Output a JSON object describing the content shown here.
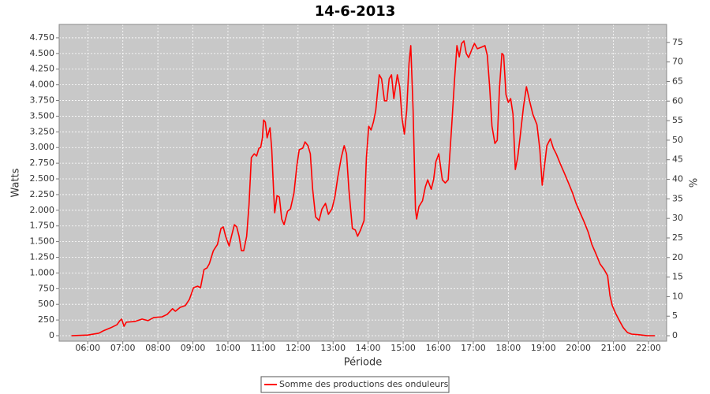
{
  "chart_data": {
    "type": "line",
    "title": "14-6-2013",
    "x_label": "Période",
    "y_label": "Watts",
    "y2_label": "%",
    "x": [
      "05:32",
      "06:00",
      "06:19",
      "06:26",
      "06:39",
      "06:50",
      "06:55",
      "06:58",
      "07:02",
      "07:06",
      "07:20",
      "07:33",
      "07:43",
      "07:53",
      "08:07",
      "08:16",
      "08:25",
      "08:30",
      "08:38",
      "08:47",
      "08:54",
      "09:01",
      "09:08",
      "09:13",
      "09:19",
      "09:24",
      "09:28",
      "09:35",
      "09:42",
      "09:48",
      "09:52",
      "09:56",
      "10:02",
      "10:06",
      "10:11",
      "10:15",
      "10:19",
      "10:23",
      "10:27",
      "10:32",
      "10:36",
      "10:40",
      "10:45",
      "10:49",
      "10:53",
      "10:56",
      "10:59",
      "11:01",
      "11:04",
      "11:07",
      "11:12",
      "11:15",
      "11:18",
      "11:20",
      "11:24",
      "11:28",
      "11:32",
      "11:36",
      "11:42",
      "11:47",
      "11:53",
      "11:58",
      "12:02",
      "12:08",
      "12:12",
      "12:17",
      "12:21",
      "12:25",
      "12:30",
      "12:36",
      "12:41",
      "12:47",
      "12:52",
      "12:58",
      "13:03",
      "13:08",
      "13:14",
      "13:19",
      "13:23",
      "13:27",
      "13:33",
      "13:38",
      "13:42",
      "13:47",
      "13:53",
      "13:57",
      "14:01",
      "14:05",
      "14:09",
      "14:13",
      "14:19",
      "14:23",
      "14:28",
      "14:32",
      "14:36",
      "14:40",
      "14:44",
      "14:50",
      "14:54",
      "14:58",
      "15:02",
      "15:06",
      "15:10",
      "15:13",
      "15:17",
      "15:21",
      "15:23",
      "15:27",
      "15:33",
      "15:38",
      "15:42",
      "15:48",
      "15:52",
      "15:56",
      "16:01",
      "16:07",
      "16:12",
      "16:17",
      "16:23",
      "16:28",
      "16:32",
      "16:36",
      "16:40",
      "16:44",
      "16:48",
      "16:52",
      "16:58",
      "17:02",
      "17:07",
      "17:14",
      "17:20",
      "17:24",
      "17:28",
      "17:32",
      "17:37",
      "17:41",
      "17:45",
      "17:49",
      "17:52",
      "17:56",
      "18:00",
      "18:04",
      "18:08",
      "18:12",
      "18:16",
      "18:20",
      "18:26",
      "18:31",
      "18:37",
      "18:42",
      "18:49",
      "18:54",
      "18:58",
      "19:02",
      "19:06",
      "19:12",
      "19:17",
      "19:22",
      "19:29",
      "19:36",
      "19:43",
      "19:50",
      "19:56",
      "20:03",
      "20:10",
      "20:17",
      "20:23",
      "20:30",
      "20:37",
      "20:44",
      "20:50",
      "20:54",
      "20:58",
      "21:04",
      "21:11",
      "21:17",
      "21:24",
      "21:31",
      "21:44",
      "21:58",
      "22:11"
    ],
    "series": [
      {
        "name": "Somme des productions des onduleurs",
        "color": "#ff0000",
        "values": [
          0,
          10,
          40,
          75,
          125,
          175,
          240,
          265,
          150,
          215,
          225,
          265,
          240,
          290,
          300,
          340,
          430,
          390,
          450,
          480,
          580,
          765,
          790,
          765,
          1055,
          1080,
          1145,
          1355,
          1455,
          1710,
          1735,
          1585,
          1430,
          1585,
          1770,
          1735,
          1585,
          1355,
          1355,
          1585,
          2085,
          2840,
          2900,
          2865,
          2990,
          3000,
          3155,
          3440,
          3405,
          3155,
          3315,
          2965,
          2335,
          1960,
          2235,
          2210,
          1860,
          1770,
          1985,
          2020,
          2275,
          2715,
          2965,
          2990,
          3090,
          3030,
          2900,
          2335,
          1895,
          1835,
          2020,
          2110,
          1935,
          2020,
          2210,
          2525,
          2840,
          3030,
          2900,
          2335,
          1710,
          1685,
          1585,
          1685,
          1835,
          2840,
          3340,
          3280,
          3405,
          3590,
          4160,
          4095,
          3745,
          3745,
          4095,
          4160,
          3780,
          4160,
          3970,
          3470,
          3215,
          3590,
          4345,
          4625,
          3590,
          2020,
          1860,
          2060,
          2150,
          2375,
          2485,
          2335,
          2485,
          2775,
          2900,
          2485,
          2435,
          2485,
          3340,
          4095,
          4625,
          4445,
          4660,
          4700,
          4500,
          4435,
          4575,
          4660,
          4575,
          4600,
          4625,
          4470,
          3970,
          3340,
          3065,
          3115,
          3970,
          4500,
          4470,
          3845,
          3720,
          3780,
          3530,
          2650,
          2840,
          3155,
          3655,
          3970,
          3720,
          3530,
          3365,
          2965,
          2400,
          2715,
          3030,
          3140,
          2990,
          2900,
          2740,
          2590,
          2435,
          2275,
          2110,
          1960,
          1810,
          1645,
          1455,
          1305,
          1145,
          1055,
          955,
          640,
          480,
          350,
          225,
          125,
          50,
          25,
          15,
          0,
          0
        ]
      }
    ],
    "xlim": [
      "05:11",
      "22:31"
    ],
    "xticks": [
      "06:00",
      "07:00",
      "08:00",
      "09:00",
      "10:00",
      "11:00",
      "12:00",
      "13:00",
      "14:00",
      "15:00",
      "16:00",
      "17:00",
      "18:00",
      "19:00",
      "20:00",
      "21:00",
      "22:00"
    ],
    "ylim": [
      -88,
      4963
    ],
    "yticks": [
      0,
      250,
      500,
      750,
      {
        "value": 1000,
        "label": "1.000"
      },
      {
        "value": 1250,
        "label": "1.250"
      },
      {
        "value": 1500,
        "label": "1.500"
      },
      {
        "value": 1750,
        "label": "1.750"
      },
      {
        "value": 2000,
        "label": "2.000"
      },
      {
        "value": 2250,
        "label": "2.250"
      },
      {
        "value": 2500,
        "label": "2.500"
      },
      {
        "value": 2750,
        "label": "2.750"
      },
      {
        "value": 3000,
        "label": "3.000"
      },
      {
        "value": 3250,
        "label": "3.250"
      },
      {
        "value": 3500,
        "label": "3.500"
      },
      {
        "value": 3750,
        "label": "3.750"
      },
      {
        "value": 4000,
        "label": "4.000"
      },
      {
        "value": 4250,
        "label": "4.250"
      },
      {
        "value": 4500,
        "label": "4.500"
      },
      {
        "value": 4750,
        "label": "4.750"
      }
    ],
    "y2lim": [
      -1.4,
      79.6
    ],
    "y2ticks": [
      0,
      5,
      10,
      15,
      20,
      25,
      30,
      35,
      40,
      45,
      50,
      55,
      60,
      65,
      70,
      75
    ],
    "grid": true,
    "plot_background": "#c8c8c8",
    "legend": "bottom"
  }
}
